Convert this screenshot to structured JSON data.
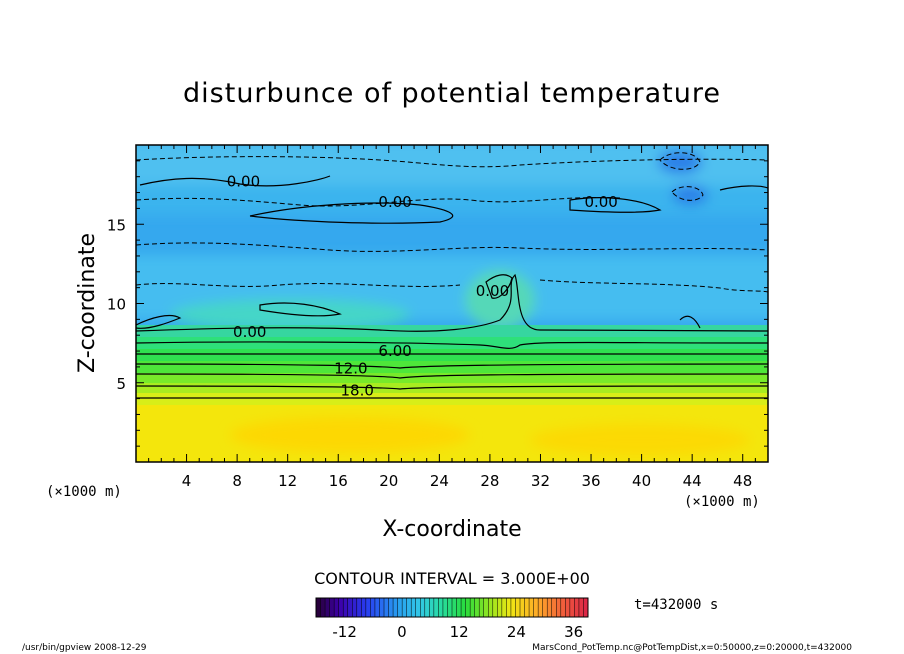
{
  "chart_data": {
    "type": "heatmap",
    "title": "disturbunce of potential temperature",
    "xlabel": "X-coordinate",
    "ylabel": "Z-coordinate",
    "x_unit": "(×1000 m)",
    "x_unit_right": "(×1000 m)",
    "y_unit": "(×1000 m)",
    "xlim": [
      0,
      50
    ],
    "ylim": [
      0,
      20
    ],
    "x_ticks": [
      "4",
      "8",
      "12",
      "16",
      "20",
      "24",
      "28",
      "32",
      "36",
      "40",
      "44",
      "48"
    ],
    "y_ticks": [
      "5",
      "10",
      "15"
    ],
    "contour_interval_text": "CONTOUR INTERVAL = 3.000E+00",
    "contour_labels": [
      {
        "text": "0.00",
        "x": 9.0,
        "z": 8.2
      },
      {
        "text": "6.00",
        "x": 20.5,
        "z": 7.0
      },
      {
        "text": "12.0",
        "x": 17.0,
        "z": 5.9
      },
      {
        "text": "18.0",
        "x": 17.5,
        "z": 4.5
      },
      {
        "text": "0.00",
        "x": 8.5,
        "z": 17.7
      },
      {
        "text": "0.00",
        "x": 20.5,
        "z": 16.4
      },
      {
        "text": "0.00",
        "x": 36.8,
        "z": 16.4
      },
      {
        "text": "0.00",
        "x": 28.2,
        "z": 10.8
      }
    ],
    "time_label": "t=432000 s",
    "colorbar": {
      "min": -18,
      "max": 39,
      "tick_labels": [
        "-12",
        "0",
        "12",
        "24",
        "36"
      ],
      "tick_values": [
        -12,
        0,
        12,
        24,
        36
      ]
    },
    "footer_left": "/usr/bin/gpview   2008-12-29",
    "footer_right": "MarsCond_PotTemp.nc@PotTempDist,x=0:50000,z=0:20000,t=432000"
  }
}
